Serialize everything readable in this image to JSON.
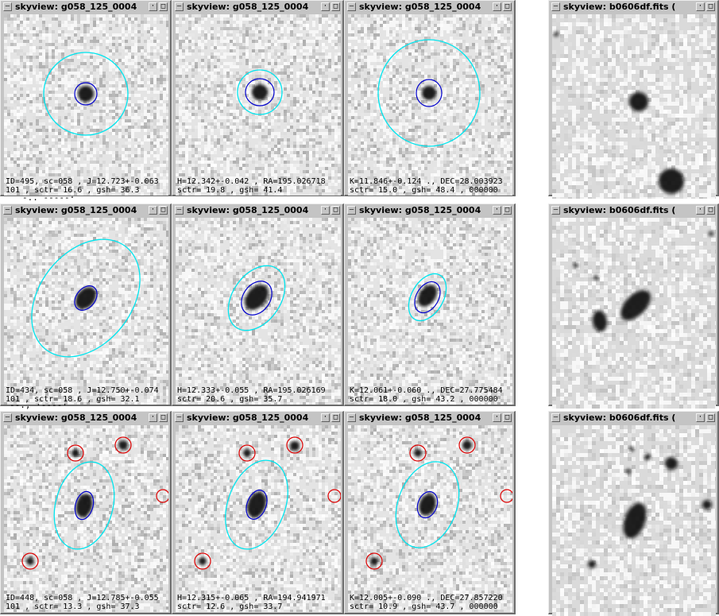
{
  "windows": [
    {
      "title": "skyview: g058_125_0004",
      "lines": [
        "ID=495, sc=058 , J=12.723+-0.063",
        "101 , sctr= 16.6 , gsh= 36.3"
      ]
    },
    {
      "title": "skyview: g058_125_0004",
      "lines": [
        "H=12.342+-0.042 , RA=195.026718",
        "sctr= 19.8 , gsh= 41.4"
      ]
    },
    {
      "title": "skyview: g058_125_0004",
      "lines": [
        "K=11.846+-0.124 ., DEC=28.003923",
        "sctr= 15.0 , gsh= 48.4 , 000000"
      ]
    },
    {
      "title": "skyview: b0606df.fits  (",
      "lines": []
    },
    {
      "title": "skyview: g058_125_0004",
      "lines": [
        "ID=434, sc=058 , J=12.750+-0.074",
        "101 , sctr= 18.6 , gsh= 32.1"
      ]
    },
    {
      "title": "skyview: g058_125_0004",
      "lines": [
        "H=12.333+-0.055 , RA=195.026169",
        "sctr= 20.6 , gsh= 35.7"
      ]
    },
    {
      "title": "skyview: g058_125_0004",
      "lines": [
        "K=12.061+-0.060 ., DEC=27.775484",
        "sctr= 18.0 , gsh= 43.2 , 000000"
      ]
    },
    {
      "title": "skyview: b0606df.fits  (",
      "lines": []
    },
    {
      "title": "skyview: g058_125_0004",
      "lines": [
        "ID=448, sc=058 , J=12.785+-0.055",
        "101 , sctr= 13.3 , gsh= 37.3"
      ]
    },
    {
      "title": "skyview: g058_125_0004",
      "lines": [
        "H=12.315+-0.065 , RA=194.941971",
        "sctr= 12.6 , gsh= 33.7"
      ]
    },
    {
      "title": "skyview: g058_125_0004",
      "lines": [
        "K=12.005+-0.090 ., DEC=27.857220",
        "sctr= 10.9 , gsh= 43.7 , 000000"
      ]
    },
    {
      "title": "skyview: b0606df.fits  (",
      "lines": []
    }
  ],
  "buttons": {
    "menu_glyph": "—",
    "minimize_glyph": "·",
    "maximize_glyph": "□"
  },
  "stray_text": [
    "-.. -----·",
    "--., ·----·"
  ],
  "colors": {
    "aperture_outer": "#00e5ee",
    "aperture_inner": "#0000cc",
    "neighbor_marker": "#dd0000",
    "frame": "#c4c4c4"
  }
}
